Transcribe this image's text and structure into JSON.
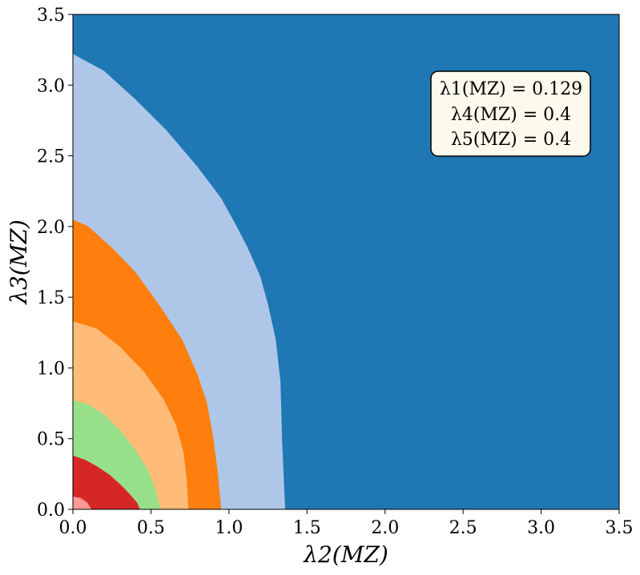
{
  "chart_data": {
    "type": "area",
    "title": "",
    "xlabel": "λ2(MZ)",
    "ylabel": "λ3(MZ)",
    "xlim": [
      0.0,
      3.5
    ],
    "ylim": [
      0.0,
      3.5
    ],
    "xticks": [
      "0.0",
      "0.5",
      "1.0",
      "1.5",
      "2.0",
      "2.5",
      "3.0",
      "3.5"
    ],
    "yticks": [
      "0.0",
      "0.5",
      "1.0",
      "1.5",
      "2.0",
      "2.5",
      "3.0",
      "3.5"
    ],
    "grid": false,
    "legend": "none",
    "background_color": "#1f77b4",
    "regions": [
      {
        "color": "#aec7e8",
        "boundary": [
          [
            0.0,
            3.22
          ],
          [
            0.2,
            3.1
          ],
          [
            0.4,
            2.9
          ],
          [
            0.6,
            2.68
          ],
          [
            0.8,
            2.42
          ],
          [
            0.95,
            2.2
          ],
          [
            1.05,
            2.0
          ],
          [
            1.12,
            1.85
          ],
          [
            1.2,
            1.65
          ],
          [
            1.25,
            1.45
          ],
          [
            1.3,
            1.2
          ],
          [
            1.33,
            0.9
          ],
          [
            1.34,
            0.5
          ],
          [
            1.36,
            0.0
          ]
        ]
      },
      {
        "color": "#ff7f0e",
        "boundary": [
          [
            0.0,
            2.05
          ],
          [
            0.1,
            2.0
          ],
          [
            0.25,
            1.85
          ],
          [
            0.4,
            1.68
          ],
          [
            0.55,
            1.45
          ],
          [
            0.7,
            1.2
          ],
          [
            0.8,
            0.95
          ],
          [
            0.86,
            0.75
          ],
          [
            0.9,
            0.5
          ],
          [
            0.93,
            0.25
          ],
          [
            0.95,
            0.0
          ]
        ]
      },
      {
        "color": "#ffbb78",
        "boundary": [
          [
            0.0,
            1.33
          ],
          [
            0.15,
            1.28
          ],
          [
            0.3,
            1.15
          ],
          [
            0.45,
            0.98
          ],
          [
            0.58,
            0.78
          ],
          [
            0.66,
            0.6
          ],
          [
            0.71,
            0.4
          ],
          [
            0.73,
            0.2
          ],
          [
            0.74,
            0.0
          ]
        ]
      },
      {
        "color": "#98df8a",
        "boundary": [
          [
            0.0,
            0.77
          ],
          [
            0.1,
            0.74
          ],
          [
            0.2,
            0.67
          ],
          [
            0.3,
            0.56
          ],
          [
            0.4,
            0.42
          ],
          [
            0.47,
            0.3
          ],
          [
            0.52,
            0.17
          ],
          [
            0.55,
            0.05
          ],
          [
            0.56,
            0.0
          ]
        ]
      },
      {
        "color": "#d62728",
        "boundary": [
          [
            0.0,
            0.38
          ],
          [
            0.08,
            0.35
          ],
          [
            0.16,
            0.3
          ],
          [
            0.24,
            0.24
          ],
          [
            0.31,
            0.17
          ],
          [
            0.37,
            0.1
          ],
          [
            0.41,
            0.05
          ],
          [
            0.43,
            0.0
          ]
        ]
      },
      {
        "color": "#ff9896",
        "boundary": [
          [
            0.0,
            0.09
          ],
          [
            0.05,
            0.08
          ],
          [
            0.09,
            0.05
          ],
          [
            0.12,
            0.0
          ]
        ]
      }
    ],
    "annotation": {
      "lines": [
        "λ1(MZ) = 0.129",
        "λ4(MZ) = 0.4",
        "λ5(MZ) = 0.4"
      ],
      "box_color": "#fdf9ec"
    }
  }
}
